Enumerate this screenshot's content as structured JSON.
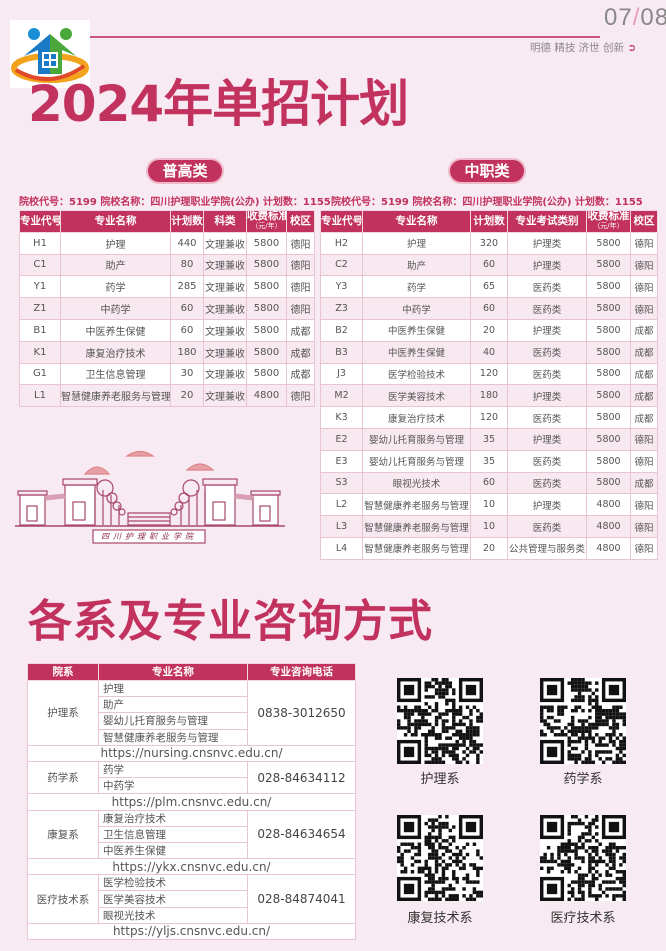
{
  "header": {
    "page": "07",
    "total": "08",
    "motto": "明德 精技 济世 创新"
  },
  "title": "2024年单招计划",
  "general": {
    "label": "普高类",
    "info": "院校代号：5199  院校名称：四川护理职业学院(公办)  计划数：1155",
    "columns": [
      "专业代号",
      "专业名称",
      "计划数",
      "科类",
      "收费标准",
      "（元/年）",
      "校区"
    ],
    "rows": [
      [
        "H1",
        "护理",
        "440",
        "文理兼收",
        "5800",
        "德阳"
      ],
      [
        "C1",
        "助产",
        "80",
        "文理兼收",
        "5800",
        "德阳"
      ],
      [
        "Y1",
        "药学",
        "285",
        "文理兼收",
        "5800",
        "德阳"
      ],
      [
        "Z1",
        "中药学",
        "60",
        "文理兼收",
        "5800",
        "德阳"
      ],
      [
        "B1",
        "中医养生保健",
        "60",
        "文理兼收",
        "5800",
        "成都"
      ],
      [
        "K1",
        "康复治疗技术",
        "180",
        "文理兼收",
        "5800",
        "成都"
      ],
      [
        "G1",
        "卫生信息管理",
        "30",
        "文理兼收",
        "5800",
        "成都"
      ],
      [
        "L1",
        "智慧健康养老服务与管理",
        "20",
        "文理兼收",
        "4800",
        "德阳"
      ]
    ]
  },
  "vocational": {
    "label": "中职类",
    "info": "院校代号：5199 院校名称：四川护理职业学院(公办) 计划数：1155",
    "columns": [
      "专业代号",
      "专业名称",
      "计划数",
      "专业考试类别",
      "收费标准",
      "（元/年）",
      "校区"
    ],
    "rows": [
      [
        "H2",
        "护理",
        "320",
        "护理类",
        "5800",
        "德阳"
      ],
      [
        "C2",
        "助产",
        "60",
        "护理类",
        "5800",
        "德阳"
      ],
      [
        "Y3",
        "药学",
        "65",
        "医药类",
        "5800",
        "德阳"
      ],
      [
        "Z3",
        "中药学",
        "60",
        "医药类",
        "5800",
        "德阳"
      ],
      [
        "B2",
        "中医养生保健",
        "20",
        "护理类",
        "5800",
        "成都"
      ],
      [
        "B3",
        "中医养生保健",
        "40",
        "医药类",
        "5800",
        "成都"
      ],
      [
        "J3",
        "医学检验技术",
        "120",
        "医药类",
        "5800",
        "成都"
      ],
      [
        "M2",
        "医学美容技术",
        "180",
        "护理类",
        "5800",
        "成都"
      ],
      [
        "K3",
        "康复治疗技术",
        "120",
        "医药类",
        "5800",
        "成都"
      ],
      [
        "E2",
        "婴幼儿托育服务与管理",
        "35",
        "护理类",
        "5800",
        "德阳"
      ],
      [
        "E3",
        "婴幼儿托育服务与管理",
        "35",
        "医药类",
        "5800",
        "德阳"
      ],
      [
        "S3",
        "眼视光技术",
        "60",
        "医药类",
        "5800",
        "成都"
      ],
      [
        "L2",
        "智慧健康养老服务与管理",
        "10",
        "护理类",
        "4800",
        "德阳"
      ],
      [
        "L3",
        "智慧健康养老服务与管理",
        "10",
        "医药类",
        "4800",
        "德阳"
      ],
      [
        "L4",
        "智慧健康养老服务与管理",
        "20",
        "公共管理与服务类",
        "4800",
        "德阳"
      ]
    ]
  },
  "campus_sign": "四川护理职业学院",
  "contact": {
    "title": "各系及专业咨询方式",
    "columns": [
      "院系",
      "专业名称",
      "专业咨询电话"
    ],
    "departments": [
      {
        "name": "护理系",
        "majors": [
          "护理",
          "助产",
          "婴幼儿托育服务与管理",
          "智慧健康养老服务与管理"
        ],
        "phone": "0838-3012650",
        "url": "https://nursing.cnsnvc.edu.cn/"
      },
      {
        "name": "药学系",
        "majors": [
          "药学",
          "中药学"
        ],
        "phone": "028-84634112",
        "url": "https://plm.cnsnvc.edu.cn/"
      },
      {
        "name": "康复系",
        "majors": [
          "康复治疗技术",
          "卫生信息管理",
          "中医养生保健"
        ],
        "phone": "028-84634654",
        "url": "https://ykx.cnsnvc.edu.cn/"
      },
      {
        "name": "医疗技术系",
        "majors": [
          "医学检验技术",
          "医学美容技术",
          "眼视光技术"
        ],
        "phone": "028-84874041",
        "url": "https://yljs.cnsnvc.edu.cn/"
      }
    ],
    "qr_labels": [
      "护理系",
      "药学系",
      "康复技术系",
      "医疗技术系"
    ]
  },
  "colors": {
    "accent": "#c2325e",
    "background": "#f8eaf2"
  }
}
